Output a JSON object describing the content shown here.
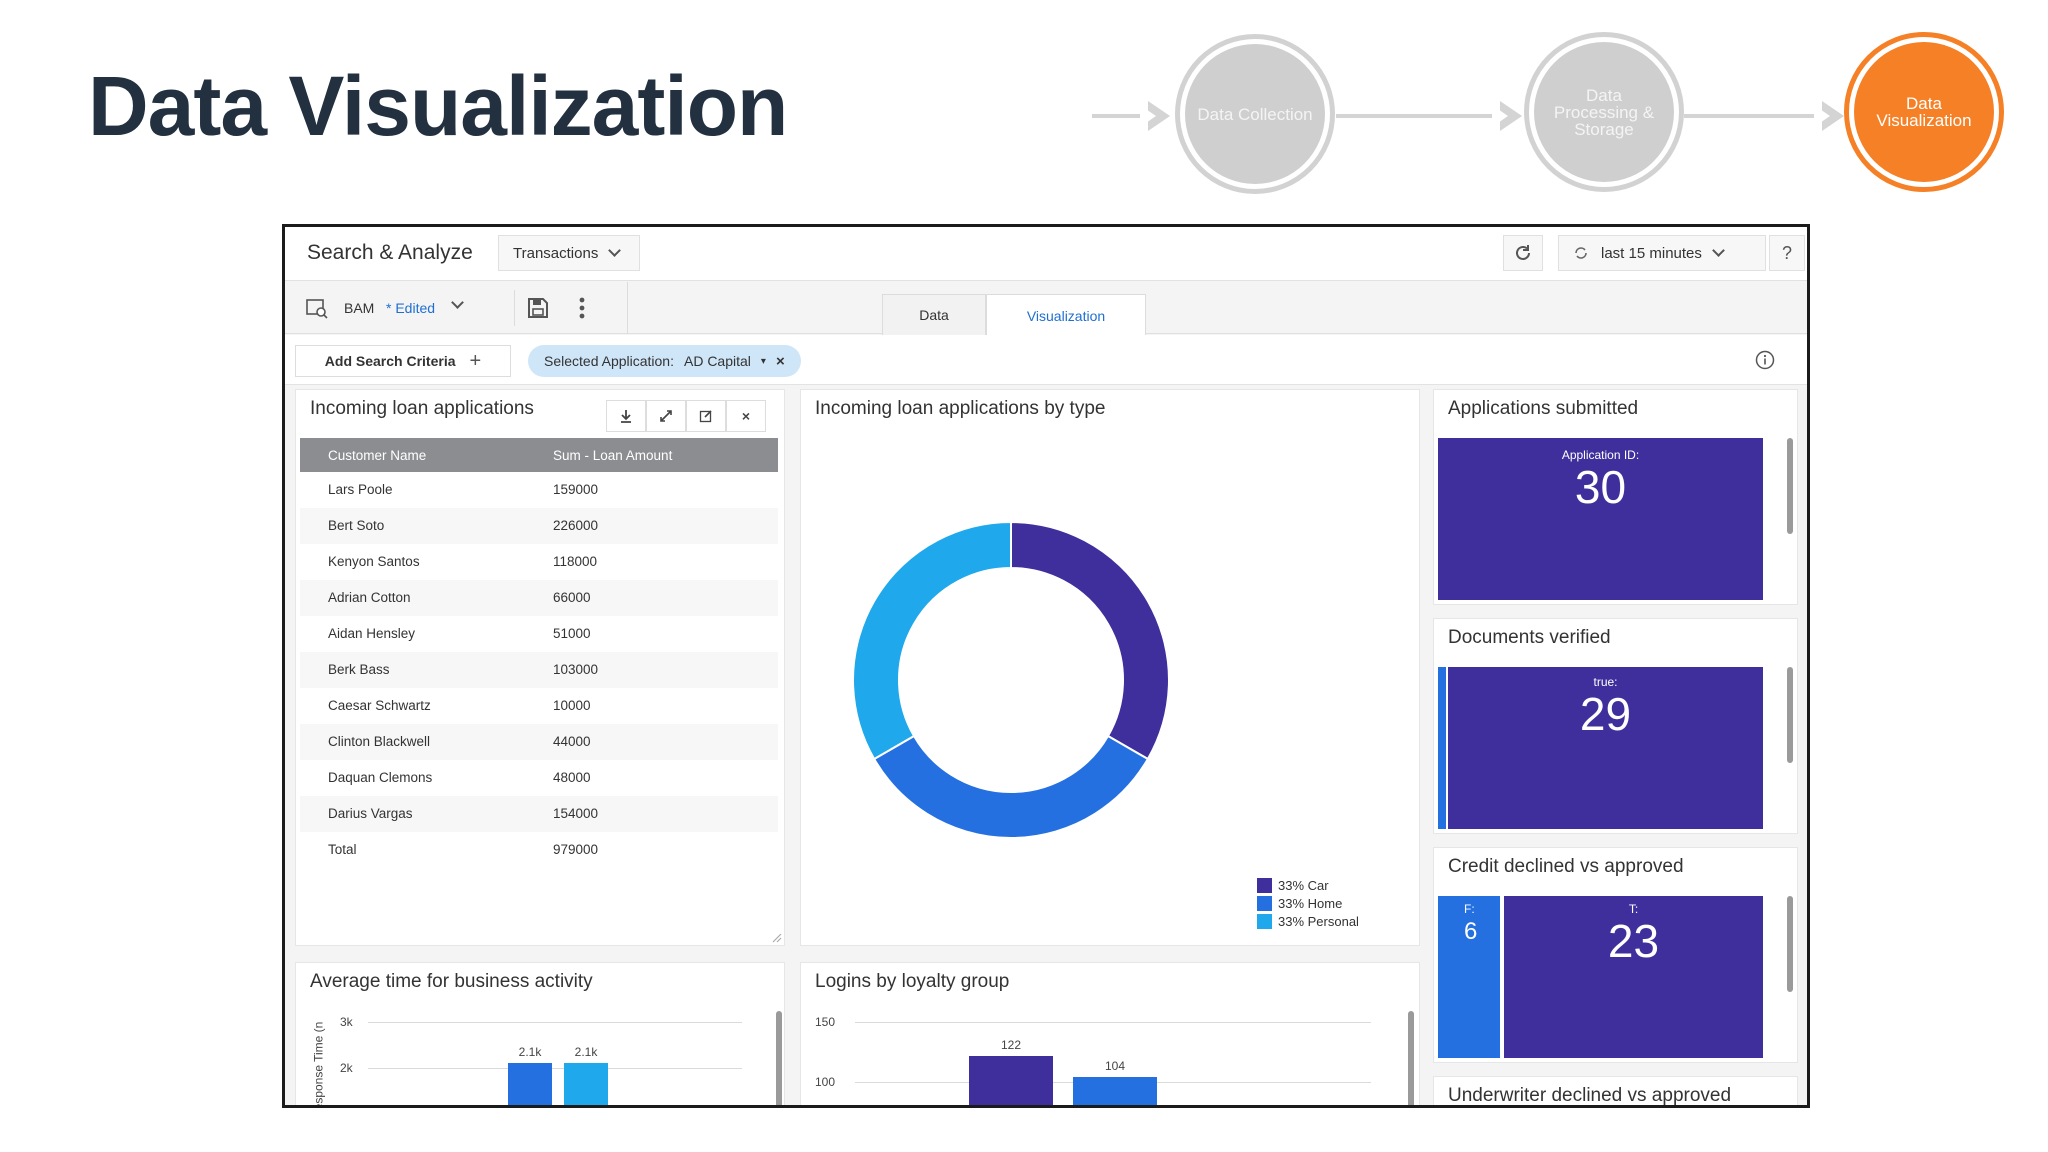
{
  "slide": {
    "title": "Data Visualization",
    "pipeline": [
      "Data Collection",
      "Data Processing & Storage",
      "Data Visualization"
    ]
  },
  "topbar": {
    "app_name": "Search & Analyze",
    "dataset_select": "Transactions",
    "refresh_icon": "refresh-icon",
    "time_range": "last 15 minutes",
    "help": "?"
  },
  "toolbar": {
    "source": "BAM",
    "edited": "* Edited",
    "tabs": [
      "Data",
      "Visualization"
    ],
    "active_tab": "Visualization"
  },
  "filters": {
    "add_label": "Add Search Criteria",
    "chip_key": "Selected Application:",
    "chip_value": "AD Capital"
  },
  "loan_table": {
    "title": "Incoming loan applications",
    "headers": [
      "Customer Name",
      "Sum - Loan Amount"
    ],
    "rows": [
      [
        "Lars Poole",
        "159000"
      ],
      [
        "Bert Soto",
        "226000"
      ],
      [
        "Kenyon Santos",
        "118000"
      ],
      [
        "Adrian Cotton",
        "66000"
      ],
      [
        "Aidan Hensley",
        "51000"
      ],
      [
        "Berk Bass",
        "103000"
      ],
      [
        "Caesar Schwartz",
        "10000"
      ],
      [
        "Clinton Blackwell",
        "44000"
      ],
      [
        "Daquan Clemons",
        "48000"
      ],
      [
        "Darius Vargas",
        "154000"
      ],
      [
        "Total",
        "979000"
      ]
    ]
  },
  "donut": {
    "title": "Incoming loan applications by type",
    "legend": [
      "33% Car",
      "33% Home",
      "33% Personal"
    ],
    "colors": [
      "#3f2f9c",
      "#2470e0",
      "#1fa8ec"
    ]
  },
  "tiles": {
    "apps_title": "Applications submitted",
    "apps_label": "Application ID:",
    "apps_value": "30",
    "docs_title": "Documents verified",
    "docs_label": "true:",
    "docs_value": "29",
    "credit_title": "Credit declined vs approved",
    "credit_f_label": "F:",
    "credit_f_value": "6",
    "credit_t_label": "T:",
    "credit_t_value": "23",
    "underwriter_title": "Underwriter declined vs approved"
  },
  "avg_time": {
    "title": "Average time for business activity",
    "ylabel": "esponse Time (n",
    "yticks": [
      "3k",
      "2k"
    ],
    "bar_labels": [
      "2.1k",
      "2.1k"
    ]
  },
  "logins": {
    "title": "Logins by loyalty group",
    "yticks": [
      "150",
      "100"
    ],
    "bar_labels": [
      "122",
      "104"
    ]
  },
  "chart_data": [
    {
      "type": "pie",
      "title": "Incoming loan applications by type",
      "categories": [
        "Car",
        "Home",
        "Personal"
      ],
      "values": [
        33,
        33,
        33
      ]
    },
    {
      "type": "bar",
      "title": "Average time for business activity",
      "ylabel": "esponse Time (n",
      "values": [
        2100,
        2100
      ],
      "ylim": [
        1000,
        3000
      ]
    },
    {
      "type": "bar",
      "title": "Logins by loyalty group",
      "values": [
        122,
        104
      ],
      "ylim": [
        100,
        150
      ]
    }
  ]
}
